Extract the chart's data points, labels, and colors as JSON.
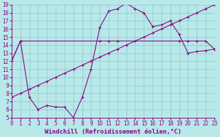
{
  "xlabel": "Windchill (Refroidissement éolien,°C)",
  "bg_color": "#b8e8e8",
  "grid_color": "#90cccc",
  "line_color": "#880088",
  "xlim": [
    0,
    23
  ],
  "ylim": [
    5,
    19
  ],
  "xticks": [
    0,
    1,
    2,
    3,
    4,
    5,
    6,
    7,
    8,
    9,
    10,
    11,
    12,
    13,
    14,
    15,
    16,
    17,
    18,
    19,
    20,
    21,
    22,
    23
  ],
  "yticks": [
    5,
    6,
    7,
    8,
    9,
    10,
    11,
    12,
    13,
    14,
    15,
    16,
    17,
    18,
    19
  ],
  "line1_x": [
    0,
    1,
    2,
    3,
    4,
    5,
    6,
    7,
    8,
    9,
    10,
    11,
    12,
    13,
    14,
    15,
    16,
    17,
    18,
    19,
    20,
    21,
    22,
    23
  ],
  "line1_y": [
    12.0,
    14.5,
    7.5,
    6.0,
    6.5,
    6.3,
    6.3,
    5.0,
    7.5,
    11.0,
    16.2,
    18.2,
    18.5,
    19.2,
    18.5,
    18.0,
    16.3,
    16.5,
    17.0,
    15.3,
    13.0,
    13.2,
    13.3,
    13.5
  ],
  "line2_x": [
    0,
    1,
    2,
    3,
    4,
    5,
    6,
    7,
    8,
    9,
    10,
    11,
    12,
    13,
    14,
    15,
    16,
    17,
    18,
    19,
    20,
    21,
    22,
    23
  ],
  "line2_y": [
    7.5,
    8.0,
    8.5,
    9.0,
    9.5,
    10.0,
    10.5,
    11.0,
    11.5,
    12.0,
    12.5,
    13.0,
    13.5,
    14.0,
    14.5,
    15.0,
    15.5,
    16.0,
    16.5,
    17.0,
    17.5,
    18.0,
    18.5,
    19.0
  ],
  "line3_x": [
    0,
    1,
    10,
    11,
    12,
    19,
    20,
    21,
    22,
    23
  ],
  "line3_y": [
    12.0,
    14.5,
    14.5,
    14.5,
    14.5,
    14.5,
    14.5,
    14.5,
    14.5,
    13.5
  ],
  "marker_style": "+",
  "marker_size": 3,
  "line_width": 0.8,
  "tick_fontsize": 5.5,
  "xlabel_fontsize": 6.5
}
